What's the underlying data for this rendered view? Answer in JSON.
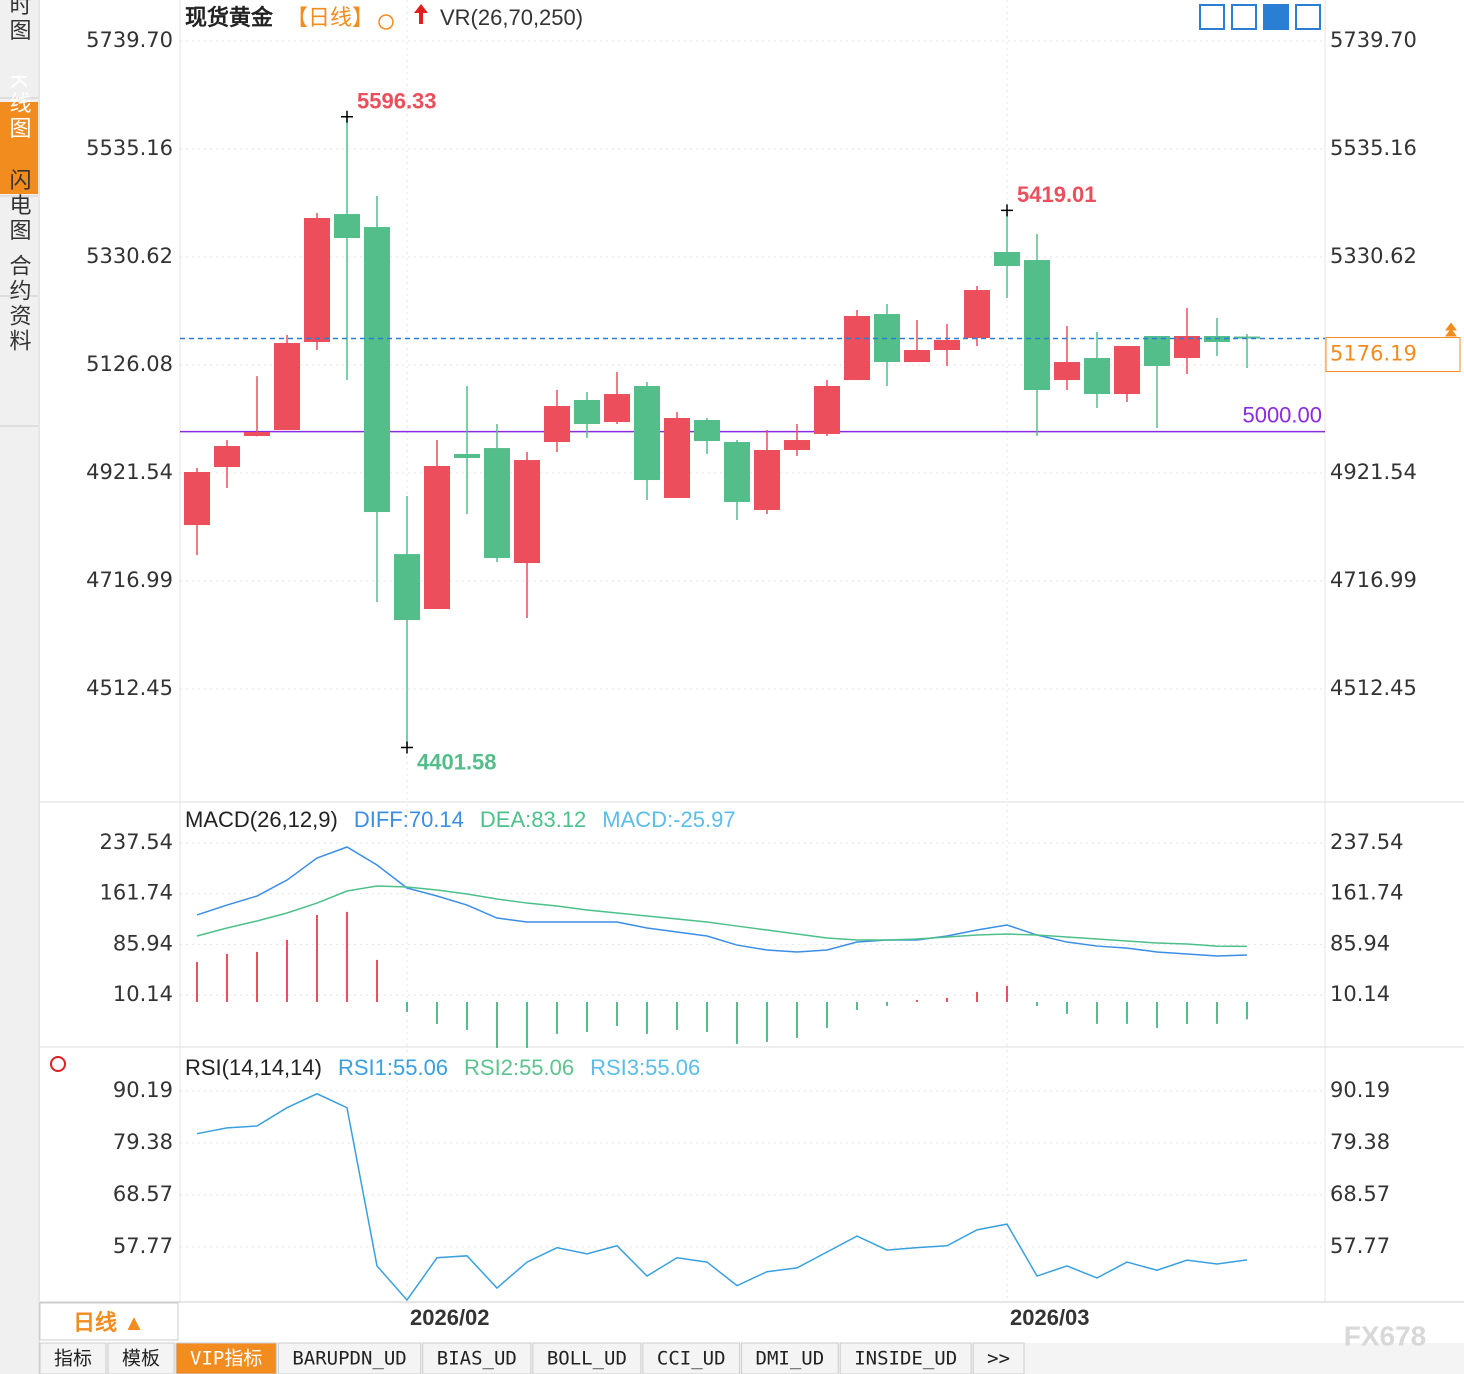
{
  "chart_data": [
    {
      "type": "candlestick",
      "title": "现货黄金",
      "period": "【日线】",
      "indicator": "VR(26,70,250)",
      "categories": [
        null,
        null,
        null,
        null,
        null,
        null,
        null,
        "2026/02",
        null,
        null,
        null,
        null,
        null,
        null,
        null,
        null,
        null,
        null,
        null,
        null,
        null,
        null,
        null,
        null,
        null,
        null,
        null,
        "2026/03",
        null,
        null,
        null,
        null,
        null,
        null,
        null,
        null
      ],
      "open": [
        4823.0,
        4932.9,
        4991.6,
        5003.0,
        5169.6,
        5412.0,
        5387.4,
        4768.0,
        4663.9,
        4957.5,
        4968.8,
        4751.0,
        4980.2,
        5059.8,
        5018.1,
        5086.3,
        4874.2,
        5021.9,
        4980.2,
        4851.4,
        4965.1,
        4995.4,
        5097.6,
        5222.6,
        5131.7,
        5154.5,
        5177.2,
        5340.1,
        5324.9,
        5097.6,
        5139.3,
        5071.1,
        5181.0,
        5139.3,
        5181.0,
        5180.0
      ],
      "close": [
        4923.4,
        4972.6,
        4999.2,
        5167.7,
        5404.5,
        5366.6,
        4847.6,
        4643.0,
        4934.8,
        4949.9,
        4760.5,
        4946.1,
        5048.4,
        5014.3,
        5071.1,
        4908.2,
        5025.7,
        4982.1,
        4866.6,
        4965.1,
        4984.0,
        5086.3,
        5218.9,
        5131.7,
        5154.5,
        5173.4,
        5268.1,
        5313.6,
        5078.7,
        5131.7,
        5071.1,
        5162.0,
        5124.2,
        5181.0,
        5169.6,
        5176.19
      ],
      "high": [
        4931.0,
        4984.0,
        5105.0,
        5182.9,
        5414.0,
        5596.33,
        5446.1,
        4877.9,
        4984.0,
        5086.3,
        5014.3,
        4961.3,
        5078.7,
        5074.9,
        5112.8,
        5093.9,
        5037.0,
        5025.7,
        4984.0,
        5003.0,
        5014.3,
        5097.6,
        5230.2,
        5241.6,
        5211.3,
        5203.7,
        5275.7,
        5419.01,
        5374.2,
        5199.9,
        5188.6,
        5162.0,
        5181.0,
        5234.0,
        5215.1,
        5184.8
      ],
      "low": [
        4766.0,
        4893.0,
        4991.0,
        5003.0,
        5154.5,
        5097.6,
        4677.2,
        4401.58,
        4663.9,
        4843.8,
        4752.9,
        4646.9,
        4961.3,
        4987.8,
        5014.3,
        4870.4,
        4874.2,
        4957.5,
        4832.5,
        4843.8,
        4953.7,
        4991.6,
        5097.6,
        5086.3,
        5131.7,
        5124.2,
        5162.0,
        5253.0,
        4991.6,
        5078.7,
        5044.6,
        5056.0,
        5006.7,
        5109.0,
        5143.1,
        5120.4
      ],
      "up_color": "#ec4e5c",
      "down_color": "#54be8b",
      "reference_line": {
        "value": 5000,
        "label": "5000.00"
      },
      "ylim": [
        4302.2,
        5817.4
      ],
      "yticks": [
        {
          "value": 5739.7,
          "label": "5739.70"
        },
        5535.16,
        5330.62,
        5126.08,
        4921.54,
        4716.99,
        4512.45
      ],
      "grid": true
    },
    {
      "type": "macd",
      "title": "MACD(26,12,9)",
      "series": [
        {
          "label": "DIFF:70.14",
          "color": "#3a8ee6",
          "kind": "line",
          "values": [
            130,
            144.8,
            158.3,
            182.2,
            215.1,
            231.6,
            204.7,
            170.3,
            158.3,
            144.8,
            125.4,
            119.4,
            119.4,
            119.4,
            119.4,
            110.5,
            104.5,
            98.5,
            85.0,
            77.6,
            74.6,
            77.6,
            89.5,
            92.5,
            92.5,
            98.5,
            107.5,
            115,
            100,
            89.5,
            83.5,
            80.5,
            74.6,
            71.6,
            68.6,
            70.14
          ]
        },
        {
          "label": "DEA:83.12",
          "color": "#4cc08a",
          "kind": "line",
          "values": [
            98.5,
            110.5,
            121,
            132.9,
            147.8,
            165.8,
            173.3,
            171.8,
            167.3,
            161.3,
            153.8,
            147.8,
            143.4,
            137.4,
            132.9,
            128.4,
            123.9,
            119.4,
            113.4,
            107.5,
            101.5,
            95.5,
            92.5,
            92.5,
            94,
            97,
            100,
            101.5,
            100,
            97,
            94,
            91,
            88,
            86.5,
            83.5,
            83.12
          ]
        },
        {
          "label": "MACD:-25.97",
          "color": "#5bbde8",
          "kind": "bar",
          "values": [
            59.8,
            71.8,
            74.8,
            92.7,
            130,
            134.6,
            62.8,
            -15,
            -32.9,
            -41.9,
            -68.8,
            -68.8,
            -47.8,
            -44.9,
            -35.9,
            -47.8,
            -41.9,
            -44.9,
            -62.8,
            -59.8,
            -53.8,
            -38.9,
            -12,
            -6,
            3,
            6,
            15,
            23.9,
            -6,
            -17.9,
            -32.9,
            -32.9,
            -38.9,
            -32.9,
            -32.9,
            -25.97
          ]
        }
      ],
      "ylim": [
        -68.9,
        294.4
      ],
      "yticks": [
        237.54,
        161.74,
        85.94,
        10.14
      ],
      "grid": true
    },
    {
      "type": "rsi",
      "title": "RSI(14,14,14)",
      "series": [
        {
          "label": "RSI1:55.06",
          "color": "#39a0e0",
          "kind": "line",
          "values": [
            81.3,
            82.5,
            82.9,
            86.7,
            89.6,
            86.7,
            53.8,
            46.7,
            55.5,
            55.9,
            49.2,
            54.6,
            57.6,
            56.3,
            58,
            51.7,
            55.5,
            54.6,
            49.7,
            52.6,
            53.4,
            56.7,
            60.0,
            57.1,
            57.6,
            58,
            61.3,
            62.5,
            51.7,
            53.8,
            51.3,
            54.6,
            52.9,
            55.0,
            54.2,
            55.06
          ]
        }
      ],
      "legend_extra": [
        {
          "label": "RSI2:55.06",
          "color": "#5dc38e"
        },
        {
          "label": "RSI3:55.06",
          "color": "#5bbde8"
        }
      ],
      "ylim": [
        46.3,
        98.7
      ],
      "yticks": [
        90.19,
        79.38,
        68.57,
        57.77
      ],
      "grid": true
    }
  ],
  "ui": {
    "sidebar": [
      "分时图",
      "K线图",
      "闪电图",
      "合约资料"
    ],
    "period_button": "日线 ▲",
    "tabs": [
      "指标",
      "模板",
      "VIP指标",
      "BARUPDN_UD",
      "BIAS_UD",
      "BOLL_UD",
      "CCI_UD",
      "DMI_UD",
      "INSIDE_UD",
      ">>"
    ],
    "watermark": "FX678"
  }
}
